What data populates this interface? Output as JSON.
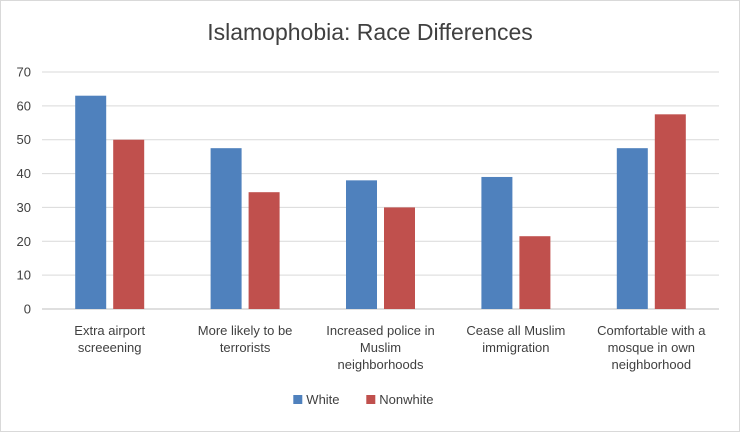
{
  "chart_data": {
    "type": "bar",
    "title": "Islamophobia: Race Differences",
    "categories": [
      [
        "Extra airport",
        "screeening"
      ],
      [
        "More likely to be",
        "terrorists"
      ],
      [
        "Increased police in",
        "Muslim",
        "neighborhoods"
      ],
      [
        "Cease all Muslim",
        "immigration"
      ],
      [
        "Comfortable with a",
        "mosque in own",
        "neighborhood"
      ]
    ],
    "series": [
      {
        "name": "White",
        "color": "#4f81bd",
        "values": [
          63,
          47.5,
          38,
          39,
          47.5
        ]
      },
      {
        "name": "Nonwhite",
        "color": "#c0504d",
        "values": [
          50,
          34.5,
          30,
          21.5,
          57.5
        ]
      }
    ],
    "ylim": [
      0,
      70
    ],
    "yticks": [
      "0",
      "10",
      "20",
      "30",
      "40",
      "50",
      "60",
      "70"
    ],
    "grid": true,
    "legend_position": "bottom",
    "xlabel": "",
    "ylabel": ""
  }
}
